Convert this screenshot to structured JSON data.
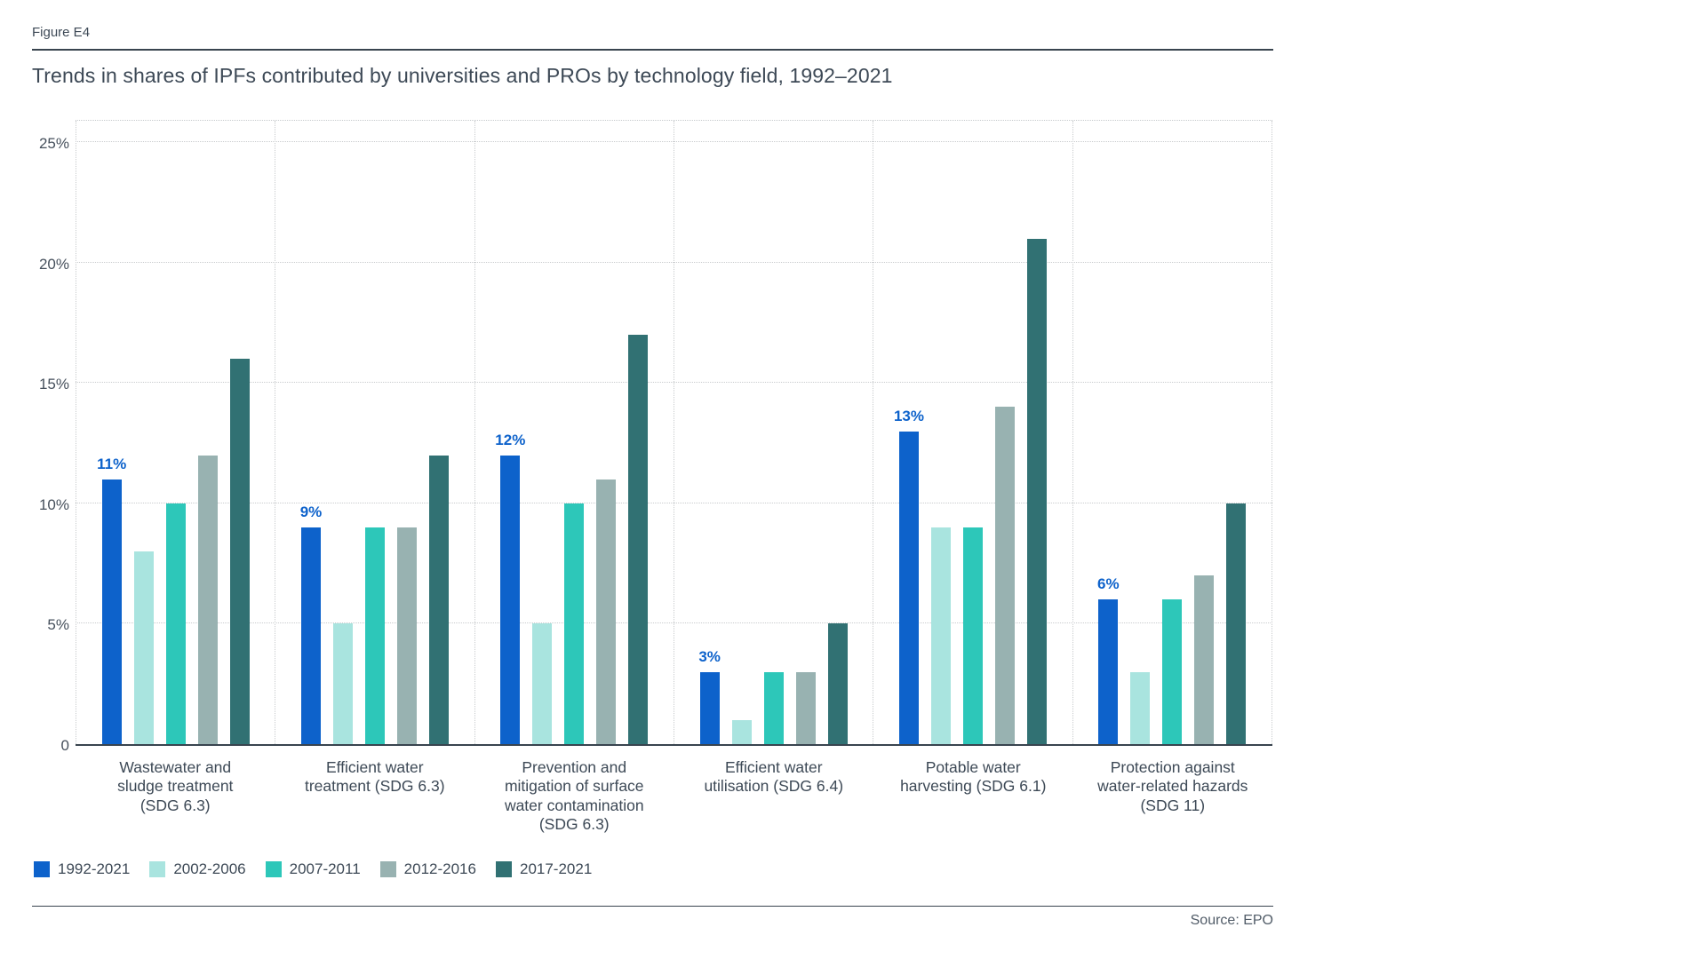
{
  "figure_label": "Figure E4",
  "title": "Trends in shares of IPFs contributed by universities and PROs by technology field, 1992–2021",
  "source": "Source: EPO",
  "colors": {
    "accent_blue": "#0d62cb",
    "axis_line": "#39444f",
    "grid_dotted": "#c9ccce",
    "text": "#3d4956"
  },
  "chart_data": {
    "type": "bar",
    "title": "Trends in shares of IPFs contributed by universities and PROs by technology field, 1992–2021",
    "categories": [
      [
        "Wastewater and",
        "sludge treatment",
        "(SDG 6.3)"
      ],
      [
        "Efficient water",
        "treatment (SDG 6.3)"
      ],
      [
        "Prevention and",
        "mitigation of surface",
        "water contamination",
        "(SDG 6.3)"
      ],
      [
        "Efficient water",
        "utilisation (SDG 6.4)"
      ],
      [
        "Potable water",
        "harvesting (SDG 6.1)"
      ],
      [
        "Protection against",
        "water-related hazards",
        "(SDG 11)"
      ]
    ],
    "series": [
      {
        "name": "1992-2021",
        "color": "#0d62cb",
        "values": [
          11,
          9,
          12,
          3,
          13,
          6
        ]
      },
      {
        "name": "2002-2006",
        "color": "#a9e4df",
        "values": [
          8,
          5,
          5,
          1,
          9,
          3
        ]
      },
      {
        "name": "2007-2011",
        "color": "#2dc7b9",
        "values": [
          10,
          9,
          10,
          3,
          9,
          6
        ]
      },
      {
        "name": "2012-2016",
        "color": "#98b2b1",
        "values": [
          12,
          9,
          11,
          3,
          14,
          7
        ]
      },
      {
        "name": "2017-2021",
        "color": "#317173",
        "values": [
          16,
          12,
          17,
          5,
          21,
          10
        ]
      }
    ],
    "first_series_value_labels": [
      "11%",
      "9%",
      "12%",
      "3%",
      "13%",
      "6%"
    ],
    "y_ticks": {
      "labels": [
        "0",
        "5%",
        "10%",
        "15%",
        "20%",
        "25%"
      ],
      "values": [
        0,
        5,
        10,
        15,
        20,
        25
      ]
    },
    "ylim": [
      0,
      26
    ],
    "grid": {
      "horizontal": "dotted",
      "vertical_group_separators": "dotted"
    },
    "legend_position": "bottom-left"
  }
}
